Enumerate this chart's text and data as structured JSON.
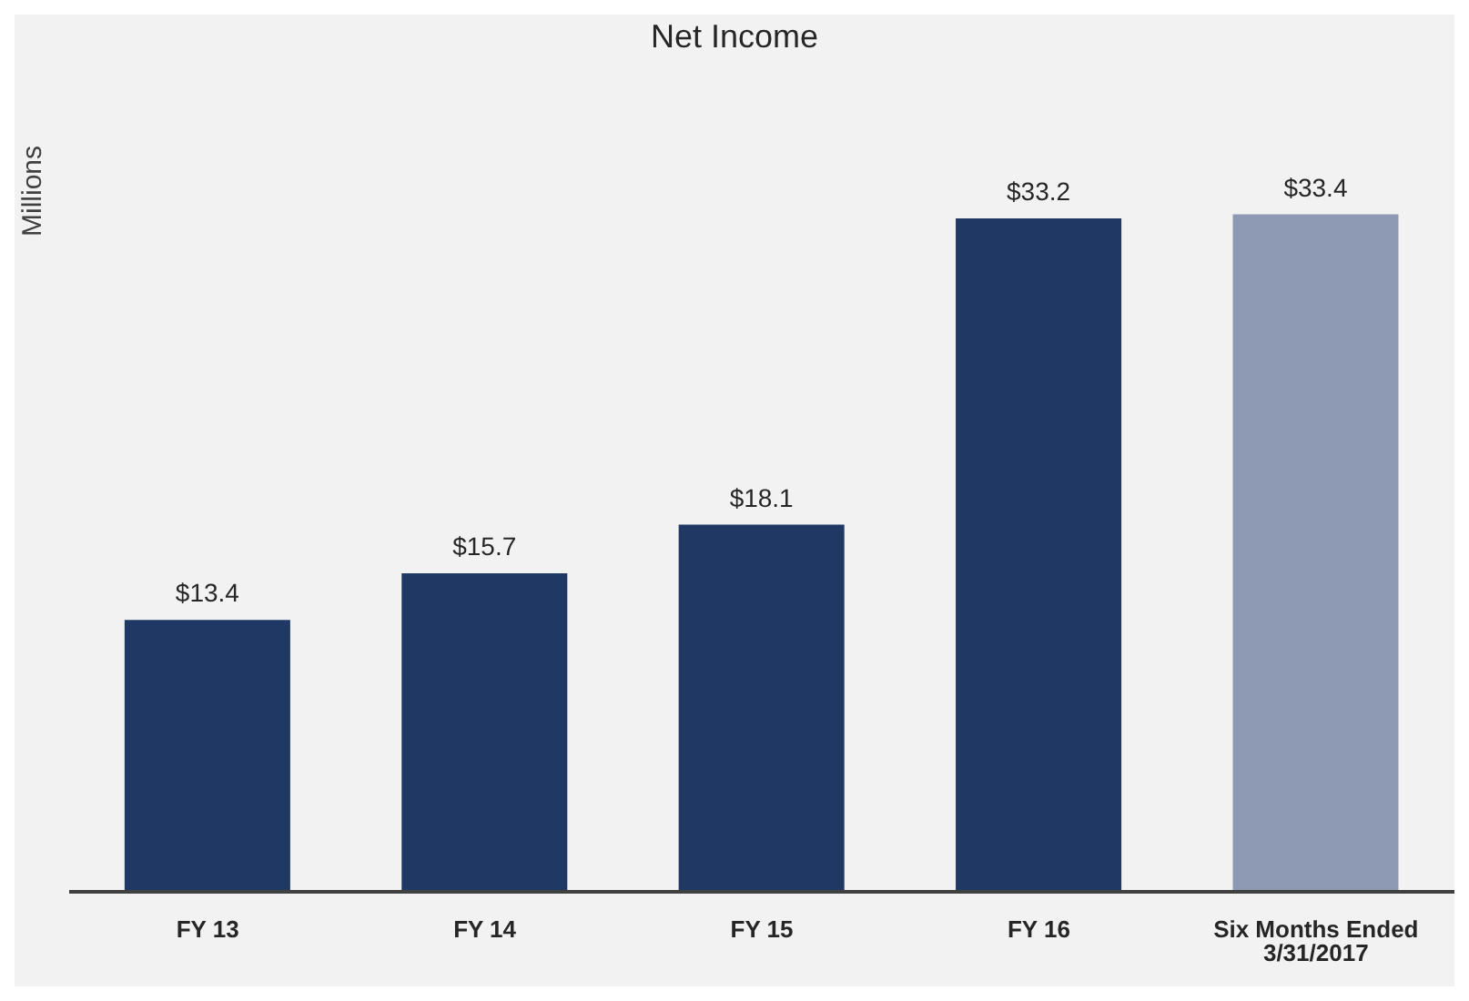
{
  "chart_data": {
    "type": "bar",
    "title": "Net Income",
    "ylabel": "Millions",
    "categories": [
      "FY 13",
      "FY 14",
      "FY 15",
      "FY 16",
      "Six Months Ended 3/31/2017"
    ],
    "values": [
      13.4,
      15.7,
      18.1,
      33.2,
      33.4
    ],
    "colors": [
      "#203864",
      "#203864",
      "#203864",
      "#203864",
      "#8e99b4"
    ],
    "value_labels": [
      "$13.4",
      "$15.7",
      "$18.1",
      "$33.2",
      "$33.4"
    ]
  }
}
